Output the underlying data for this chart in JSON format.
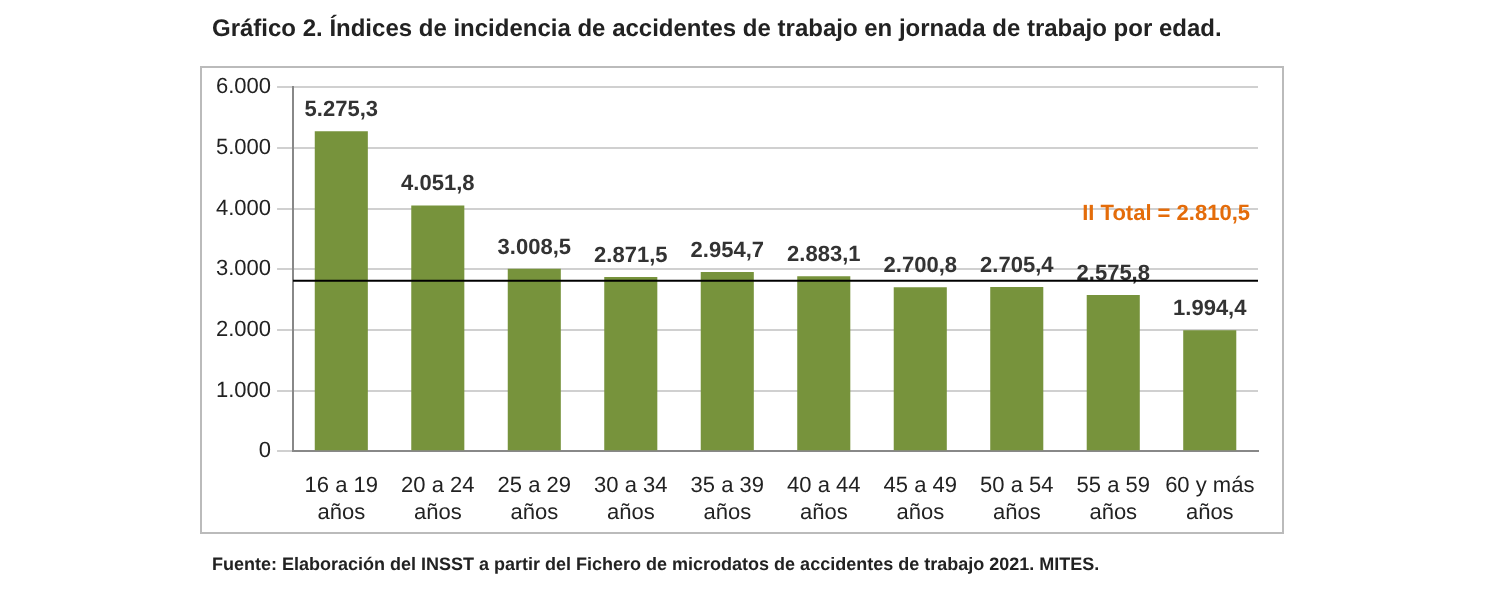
{
  "chart_data": {
    "type": "bar",
    "title": "Gráfico 2. Índices de incidencia de accidentes de trabajo en jornada de trabajo por edad.",
    "categories": [
      "16 a 19 años",
      "20 a 24 años",
      "25 a 29 años",
      "30 a 34 años",
      "35 a 39 años",
      "40 a 44 años",
      "45 a 49 años",
      "50 a 54 años",
      "55 a 59 años",
      "60 y más años"
    ],
    "values": [
      5275.3,
      4051.8,
      3008.5,
      2871.5,
      2954.7,
      2883.1,
      2700.8,
      2705.4,
      2575.8,
      1994.4
    ],
    "value_labels": [
      "5.275,3",
      "4.051,8",
      "3.008,5",
      "2.871,5",
      "2.954,7",
      "2.883,1",
      "2.700,8",
      "2.705,4",
      "2.575,8",
      "1.994,4"
    ],
    "color": "#77933c",
    "ylim": [
      0,
      6000
    ],
    "yticks": [
      {
        "value": 0,
        "label": "0"
      },
      {
        "value": 1000,
        "label": "1.000"
      },
      {
        "value": 2000,
        "label": "2.000"
      },
      {
        "value": 3000,
        "label": "3.000"
      },
      {
        "value": 4000,
        "label": "4.000"
      },
      {
        "value": 5000,
        "label": "5.000"
      },
      {
        "value": 6000,
        "label": "6.000"
      }
    ],
    "grid": "y",
    "ref_lines": [
      {
        "axis": "y",
        "value": 2810.5,
        "label": "II Total = 2.810,5",
        "color": "#000000"
      }
    ],
    "annotations": [
      "Fuente: Elaboración del INSST a partir del Fichero de microdatos de accidentes de trabajo 2021. MITES."
    ]
  }
}
